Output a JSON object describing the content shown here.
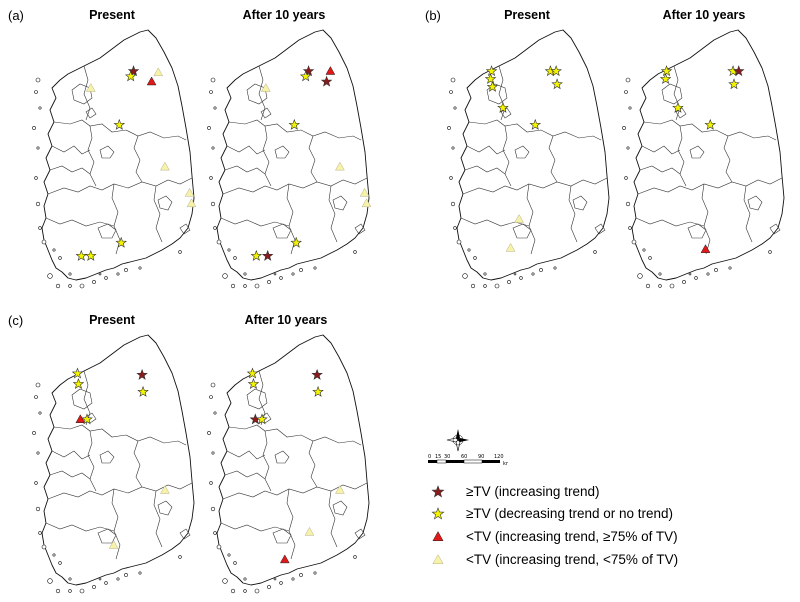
{
  "panels": [
    {
      "label": "(a)",
      "titles": [
        "Present",
        "After 10 years"
      ],
      "maps": [
        {
          "markers": [
            {
              "kind": "dark_star",
              "at": [
                0.545,
                0.165
              ]
            },
            {
              "kind": "yellow_star",
              "at": [
                0.53,
                0.185
              ]
            },
            {
              "kind": "yellow_tri",
              "at": [
                0.675,
                0.17
              ]
            },
            {
              "kind": "red_tri",
              "at": [
                0.64,
                0.205
              ]
            },
            {
              "kind": "yellow_tri",
              "at": [
                0.32,
                0.23
              ]
            },
            {
              "kind": "yellow_star",
              "at": [
                0.47,
                0.37
              ]
            },
            {
              "kind": "yellow_tri",
              "at": [
                0.71,
                0.53
              ]
            },
            {
              "kind": "yellow_tri",
              "at": [
                0.84,
                0.63
              ]
            },
            {
              "kind": "yellow_tri",
              "at": [
                0.85,
                0.67
              ]
            },
            {
              "kind": "yellow_star",
              "at": [
                0.48,
                0.82
              ]
            },
            {
              "kind": "yellow_star",
              "at": [
                0.27,
                0.87
              ]
            },
            {
              "kind": "yellow_star",
              "at": [
                0.32,
                0.87
              ]
            }
          ]
        },
        {
          "markers": [
            {
              "kind": "dark_star",
              "at": [
                0.545,
                0.165
              ]
            },
            {
              "kind": "yellow_star",
              "at": [
                0.53,
                0.185
              ]
            },
            {
              "kind": "red_tri",
              "at": [
                0.66,
                0.165
              ]
            },
            {
              "kind": "dark_star",
              "at": [
                0.64,
                0.205
              ]
            },
            {
              "kind": "yellow_tri",
              "at": [
                0.32,
                0.23
              ]
            },
            {
              "kind": "yellow_star",
              "at": [
                0.47,
                0.37
              ]
            },
            {
              "kind": "yellow_tri",
              "at": [
                0.71,
                0.53
              ]
            },
            {
              "kind": "yellow_tri",
              "at": [
                0.84,
                0.63
              ]
            },
            {
              "kind": "yellow_tri",
              "at": [
                0.85,
                0.67
              ]
            },
            {
              "kind": "yellow_star",
              "at": [
                0.48,
                0.82
              ]
            },
            {
              "kind": "yellow_star",
              "at": [
                0.27,
                0.87
              ]
            },
            {
              "kind": "dark_star",
              "at": [
                0.33,
                0.87
              ]
            }
          ]
        }
      ]
    },
    {
      "label": "(b)",
      "titles": [
        "Present",
        "After 10 years"
      ],
      "maps": [
        {
          "markers": [
            {
              "kind": "yellow_star",
              "at": [
                0.245,
                0.165
              ]
            },
            {
              "kind": "yellow_star",
              "at": [
                0.24,
                0.195
              ]
            },
            {
              "kind": "yellow_star",
              "at": [
                0.25,
                0.225
              ]
            },
            {
              "kind": "yellow_star",
              "at": [
                0.555,
                0.165
              ]
            },
            {
              "kind": "yellow_star",
              "at": [
                0.585,
                0.165
              ]
            },
            {
              "kind": "yellow_star",
              "at": [
                0.59,
                0.215
              ]
            },
            {
              "kind": "yellow_star",
              "at": [
                0.305,
                0.305
              ]
            },
            {
              "kind": "yellow_star",
              "at": [
                0.475,
                0.37
              ]
            },
            {
              "kind": "yellow_tri",
              "at": [
                0.39,
                0.73
              ]
            },
            {
              "kind": "yellow_tri",
              "at": [
                0.345,
                0.84
              ]
            }
          ]
        },
        {
          "markers": [
            {
              "kind": "yellow_star",
              "at": [
                0.245,
                0.165
              ]
            },
            {
              "kind": "yellow_star",
              "at": [
                0.24,
                0.195
              ]
            },
            {
              "kind": "yellow_star",
              "at": [
                0.595,
                0.165
              ]
            },
            {
              "kind": "dark_star",
              "at": [
                0.625,
                0.165
              ]
            },
            {
              "kind": "yellow_star",
              "at": [
                0.6,
                0.215
              ]
            },
            {
              "kind": "yellow_star",
              "at": [
                0.305,
                0.305
              ]
            },
            {
              "kind": "yellow_star",
              "at": [
                0.475,
                0.37
              ]
            },
            {
              "kind": "red_tri",
              "at": [
                0.45,
                0.845
              ]
            }
          ]
        }
      ]
    },
    {
      "label": "(c)",
      "titles": [
        "Present",
        "After 10 years"
      ],
      "maps": [
        {
          "markers": [
            {
              "kind": "yellow_star",
              "at": [
                0.25,
                0.155
              ]
            },
            {
              "kind": "yellow_star",
              "at": [
                0.255,
                0.195
              ]
            },
            {
              "kind": "dark_star",
              "at": [
                0.59,
                0.16
              ]
            },
            {
              "kind": "yellow_star",
              "at": [
                0.595,
                0.225
              ]
            },
            {
              "kind": "red_tri",
              "at": [
                0.265,
                0.33
              ]
            },
            {
              "kind": "yellow_star",
              "at": [
                0.3,
                0.33
              ]
            },
            {
              "kind": "yellow_tri",
              "at": [
                0.71,
                0.6
              ]
            },
            {
              "kind": "yellow_tri",
              "at": [
                0.44,
                0.81
              ]
            }
          ]
        },
        {
          "markers": [
            {
              "kind": "yellow_star",
              "at": [
                0.25,
                0.155
              ]
            },
            {
              "kind": "yellow_star",
              "at": [
                0.255,
                0.195
              ]
            },
            {
              "kind": "dark_star",
              "at": [
                0.59,
                0.16
              ]
            },
            {
              "kind": "yellow_star",
              "at": [
                0.595,
                0.225
              ]
            },
            {
              "kind": "dark_star",
              "at": [
                0.265,
                0.33
              ]
            },
            {
              "kind": "yellow_star",
              "at": [
                0.3,
                0.33
              ]
            },
            {
              "kind": "yellow_tri",
              "at": [
                0.71,
                0.6
              ]
            },
            {
              "kind": "yellow_tri",
              "at": [
                0.55,
                0.76
              ]
            },
            {
              "kind": "red_tri",
              "at": [
                0.42,
                0.865
              ]
            }
          ]
        }
      ]
    }
  ],
  "scale": {
    "labels": [
      "0",
      "15",
      "30",
      "60",
      "90",
      "120"
    ],
    "unit": "km"
  },
  "legend": [
    {
      "kind": "dark_star",
      "label": "≥TV (increasing trend)"
    },
    {
      "kind": "yellow_star",
      "label": "≥TV (decreasing trend or no trend)"
    },
    {
      "kind": "red_tri",
      "label": "<TV (increasing trend, ≥75% of TV)"
    },
    {
      "kind": "yellow_tri",
      "label": "<TV (increasing trend, <75% of TV)"
    }
  ],
  "colors": {
    "dark_star": "#8b1a1a",
    "yellow_star": "#f4f400",
    "red_tri": "#e01818",
    "yellow_tri": "#f6f2a8"
  }
}
